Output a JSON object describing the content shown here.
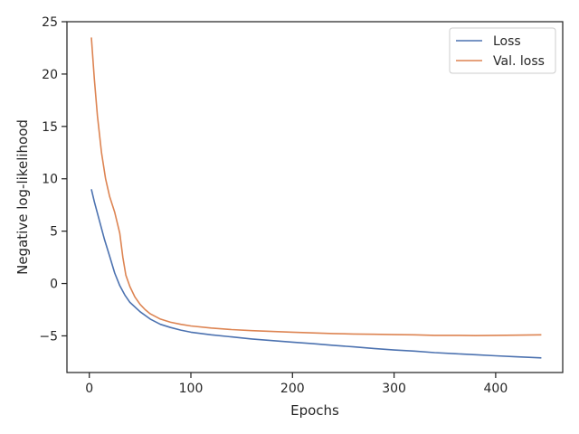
{
  "chart_data": {
    "type": "line",
    "title": "",
    "xlabel": "Epochs",
    "ylabel": "Negative log-likelihood",
    "xlim": [
      -22,
      466
    ],
    "ylim": [
      -8.5,
      25
    ],
    "xticks": [
      0,
      100,
      200,
      300,
      400
    ],
    "yticks": [
      -5,
      0,
      5,
      10,
      15,
      20,
      25
    ],
    "ytick_labels": [
      "−5",
      "0",
      "5",
      "10",
      "15",
      "20",
      "25"
    ],
    "grid": false,
    "legend": "top-right",
    "series": [
      {
        "name": "Loss",
        "color": "#4c72b0",
        "points": [
          [
            2,
            9.0
          ],
          [
            5,
            7.8
          ],
          [
            10,
            6.0
          ],
          [
            15,
            4.2
          ],
          [
            20,
            2.6
          ],
          [
            25,
            1.0
          ],
          [
            30,
            -0.2
          ],
          [
            35,
            -1.1
          ],
          [
            40,
            -1.8
          ],
          [
            50,
            -2.7
          ],
          [
            60,
            -3.4
          ],
          [
            70,
            -3.9
          ],
          [
            80,
            -4.2
          ],
          [
            90,
            -4.45
          ],
          [
            100,
            -4.65
          ],
          [
            120,
            -4.9
          ],
          [
            140,
            -5.1
          ],
          [
            160,
            -5.3
          ],
          [
            180,
            -5.45
          ],
          [
            200,
            -5.6
          ],
          [
            220,
            -5.75
          ],
          [
            240,
            -5.9
          ],
          [
            260,
            -6.05
          ],
          [
            280,
            -6.2
          ],
          [
            300,
            -6.35
          ],
          [
            320,
            -6.45
          ],
          [
            340,
            -6.6
          ],
          [
            360,
            -6.7
          ],
          [
            380,
            -6.8
          ],
          [
            400,
            -6.9
          ],
          [
            420,
            -7.0
          ],
          [
            445,
            -7.1
          ]
        ]
      },
      {
        "name": "Val. loss",
        "color": "#dd8452",
        "points": [
          [
            2,
            23.5
          ],
          [
            5,
            19.5
          ],
          [
            8,
            16.0
          ],
          [
            12,
            12.5
          ],
          [
            16,
            10.0
          ],
          [
            20,
            8.3
          ],
          [
            25,
            6.8
          ],
          [
            30,
            4.8
          ],
          [
            33,
            2.5
          ],
          [
            36,
            0.8
          ],
          [
            40,
            -0.3
          ],
          [
            45,
            -1.3
          ],
          [
            50,
            -2.0
          ],
          [
            55,
            -2.5
          ],
          [
            60,
            -2.9
          ],
          [
            70,
            -3.4
          ],
          [
            80,
            -3.7
          ],
          [
            90,
            -3.9
          ],
          [
            100,
            -4.05
          ],
          [
            120,
            -4.25
          ],
          [
            140,
            -4.4
          ],
          [
            160,
            -4.5
          ],
          [
            180,
            -4.58
          ],
          [
            200,
            -4.65
          ],
          [
            220,
            -4.72
          ],
          [
            240,
            -4.78
          ],
          [
            260,
            -4.82
          ],
          [
            280,
            -4.85
          ],
          [
            300,
            -4.88
          ],
          [
            320,
            -4.9
          ],
          [
            340,
            -4.95
          ],
          [
            360,
            -4.95
          ],
          [
            380,
            -4.98
          ],
          [
            400,
            -4.95
          ],
          [
            420,
            -4.93
          ],
          [
            445,
            -4.9
          ]
        ]
      }
    ]
  }
}
